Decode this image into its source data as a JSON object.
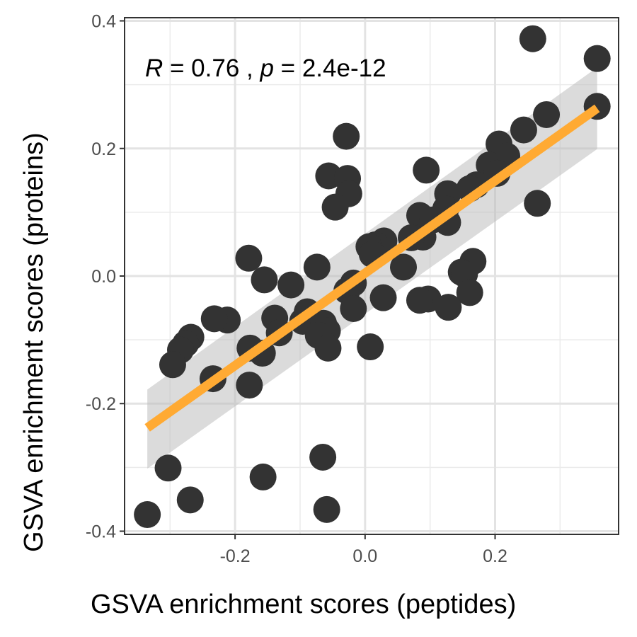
{
  "chart_data": {
    "type": "scatter",
    "xlabel": "GSVA enrichment scores (peptides)",
    "ylabel": "GSVA enrichment scores (proteins)",
    "xlim": [
      -0.37,
      0.39
    ],
    "ylim": [
      -0.405,
      0.405
    ],
    "x_ticks": [
      -0.2,
      0.0,
      0.2
    ],
    "x_tick_labels": [
      "-0.2",
      "0.0",
      "0.2"
    ],
    "y_ticks": [
      -0.4,
      -0.2,
      0.0,
      0.2,
      0.4
    ],
    "y_tick_labels": [
      "-0.4",
      "-0.2",
      "0.0",
      "0.2",
      "0.4"
    ],
    "grid": true,
    "theme": "bw",
    "annotation": {
      "r_symbol": "R",
      "r_text": " = 0.76 , ",
      "p_symbol": "p",
      "p_text": " = 2.4e-12"
    },
    "points": [
      [
        0.258,
        0.372
      ],
      [
        0.357,
        0.341
      ],
      [
        0.357,
        0.266
      ],
      [
        0.279,
        0.253
      ],
      [
        0.244,
        0.229
      ],
      [
        0.206,
        0.207
      ],
      [
        0.218,
        0.188
      ],
      [
        0.191,
        0.174
      ],
      [
        0.203,
        0.161
      ],
      [
        0.171,
        0.143
      ],
      [
        0.161,
        0.137
      ],
      [
        0.265,
        0.114
      ],
      [
        -0.029,
        0.219
      ],
      [
        -0.056,
        0.157
      ],
      [
        -0.027,
        0.153
      ],
      [
        -0.025,
        0.129
      ],
      [
        -0.046,
        0.108
      ],
      [
        0.094,
        0.166
      ],
      [
        0.127,
        0.129
      ],
      [
        0.124,
        0.105
      ],
      [
        0.084,
        0.095
      ],
      [
        0.104,
        0.088
      ],
      [
        0.127,
        0.084
      ],
      [
        0.089,
        0.061
      ],
      [
        0.071,
        0.06
      ],
      [
        0.029,
        0.055
      ],
      [
        0.016,
        0.049
      ],
      [
        0.006,
        0.046
      ],
      [
        0.011,
        0.034
      ],
      [
        0.059,
        0.014
      ],
      [
        0.166,
        0.023
      ],
      [
        0.148,
        0.006
      ],
      [
        0.153,
        0.003
      ],
      [
        0.161,
        -0.026
      ],
      [
        0.128,
        -0.049
      ],
      [
        0.097,
        -0.036
      ],
      [
        0.084,
        -0.038
      ],
      [
        0.028,
        -0.034
      ],
      [
        -0.018,
        -0.011
      ],
      [
        -0.028,
        -0.023
      ],
      [
        -0.018,
        -0.051
      ],
      [
        -0.074,
        0.014
      ],
      [
        -0.179,
        0.028
      ],
      [
        -0.155,
        -0.006
      ],
      [
        -0.114,
        -0.014
      ],
      [
        -0.089,
        -0.056
      ],
      [
        -0.096,
        -0.071
      ],
      [
        -0.064,
        -0.074
      ],
      [
        -0.058,
        -0.086
      ],
      [
        -0.072,
        -0.093
      ],
      [
        -0.057,
        -0.113
      ],
      [
        0.008,
        -0.111
      ],
      [
        -0.139,
        -0.066
      ],
      [
        -0.132,
        -0.089
      ],
      [
        -0.177,
        -0.113
      ],
      [
        -0.158,
        -0.121
      ],
      [
        -0.212,
        -0.069
      ],
      [
        -0.232,
        -0.067
      ],
      [
        -0.268,
        -0.096
      ],
      [
        -0.276,
        -0.106
      ],
      [
        -0.284,
        -0.116
      ],
      [
        -0.296,
        -0.139
      ],
      [
        -0.234,
        -0.161
      ],
      [
        -0.178,
        -0.171
      ],
      [
        -0.303,
        -0.301
      ],
      [
        -0.269,
        -0.351
      ],
      [
        -0.335,
        -0.374
      ],
      [
        -0.157,
        -0.315
      ],
      [
        -0.065,
        -0.284
      ],
      [
        -0.059,
        -0.366
      ]
    ],
    "regression": {
      "x": [
        -0.335,
        0.357
      ],
      "y": [
        -0.238,
        0.263
      ],
      "ci_low": [
        -0.302,
        0.199
      ],
      "ci_high": [
        -0.178,
        0.327
      ],
      "line_color": "#FFAA33",
      "band_color": "#BEBEBE"
    },
    "point_color": "#333333"
  }
}
